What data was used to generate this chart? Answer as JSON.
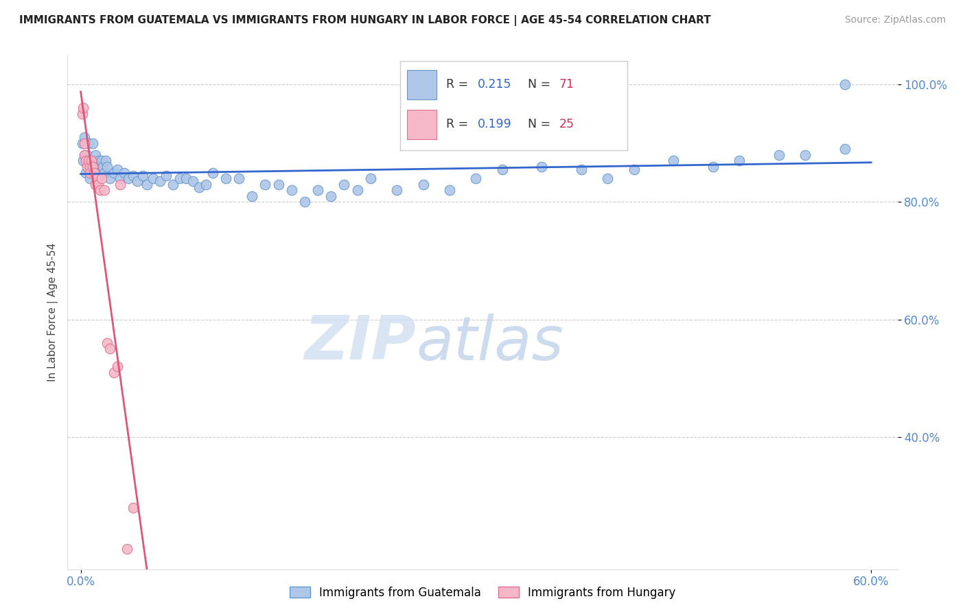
{
  "title": "IMMIGRANTS FROM GUATEMALA VS IMMIGRANTS FROM HUNGARY IN LABOR FORCE | AGE 45-54 CORRELATION CHART",
  "source": "Source: ZipAtlas.com",
  "ylabel": "In Labor Force | Age 45-54",
  "xlim": [
    -0.01,
    0.62
  ],
  "ylim": [
    0.175,
    1.05
  ],
  "ytick_vals": [
    0.4,
    0.6,
    0.8,
    1.0
  ],
  "ytick_labels": [
    "40.0%",
    "60.0%",
    "80.0%",
    "100.0%"
  ],
  "xtick_vals": [
    0.0,
    0.6
  ],
  "xtick_labels": [
    "0.0%",
    "60.0%"
  ],
  "guatemala_color": "#aec6e8",
  "guatemala_edge": "#6699cc",
  "hungary_color": "#f5b8c8",
  "hungary_edge": "#e07090",
  "trend_blue": "#3366cc",
  "trend_pink": "#e05575",
  "R_guatemala": 0.215,
  "N_guatemala": 71,
  "R_hungary": 0.199,
  "N_hungary": 25,
  "tick_color": "#5588cc",
  "watermark_zip": "ZIP",
  "watermark_atlas": "atlas",
  "legend_R_color": "#3366cc",
  "legend_N_color": "#cc3355",
  "guat_x": [
    0.001,
    0.002,
    0.003,
    0.003,
    0.004,
    0.005,
    0.005,
    0.006,
    0.007,
    0.008,
    0.009,
    0.01,
    0.01,
    0.011,
    0.012,
    0.013,
    0.014,
    0.015,
    0.016,
    0.017,
    0.018,
    0.019,
    0.02,
    0.022,
    0.025,
    0.028,
    0.03,
    0.033,
    0.036,
    0.04,
    0.043,
    0.047,
    0.05,
    0.055,
    0.06,
    0.065,
    0.07,
    0.075,
    0.08,
    0.085,
    0.09,
    0.095,
    0.1,
    0.11,
    0.12,
    0.13,
    0.14,
    0.15,
    0.16,
    0.17,
    0.18,
    0.19,
    0.2,
    0.21,
    0.22,
    0.24,
    0.26,
    0.28,
    0.3,
    0.32,
    0.35,
    0.38,
    0.4,
    0.42,
    0.45,
    0.48,
    0.5,
    0.53,
    0.55,
    0.58,
    0.58
  ],
  "guat_y": [
    0.9,
    0.87,
    0.91,
    0.88,
    0.85,
    0.88,
    0.86,
    0.9,
    0.84,
    0.87,
    0.9,
    0.85,
    0.87,
    0.88,
    0.86,
    0.84,
    0.87,
    0.85,
    0.87,
    0.86,
    0.85,
    0.87,
    0.86,
    0.84,
    0.85,
    0.855,
    0.84,
    0.85,
    0.84,
    0.845,
    0.835,
    0.845,
    0.83,
    0.84,
    0.835,
    0.845,
    0.83,
    0.84,
    0.84,
    0.835,
    0.825,
    0.83,
    0.85,
    0.84,
    0.84,
    0.81,
    0.83,
    0.83,
    0.82,
    0.8,
    0.82,
    0.81,
    0.83,
    0.82,
    0.84,
    0.82,
    0.83,
    0.82,
    0.84,
    0.855,
    0.86,
    0.855,
    0.84,
    0.855,
    0.87,
    0.86,
    0.87,
    0.88,
    0.88,
    0.89,
    1.0
  ],
  "hung_x": [
    0.001,
    0.002,
    0.003,
    0.003,
    0.004,
    0.005,
    0.006,
    0.007,
    0.007,
    0.008,
    0.009,
    0.01,
    0.011,
    0.012,
    0.013,
    0.015,
    0.016,
    0.018,
    0.02,
    0.022,
    0.025,
    0.028,
    0.03,
    0.035,
    0.04
  ],
  "hung_y": [
    0.95,
    0.96,
    0.9,
    0.88,
    0.87,
    0.86,
    0.87,
    0.86,
    0.85,
    0.87,
    0.86,
    0.85,
    0.83,
    0.84,
    0.83,
    0.82,
    0.84,
    0.82,
    0.56,
    0.55,
    0.51,
    0.52,
    0.83,
    0.21,
    0.28
  ]
}
